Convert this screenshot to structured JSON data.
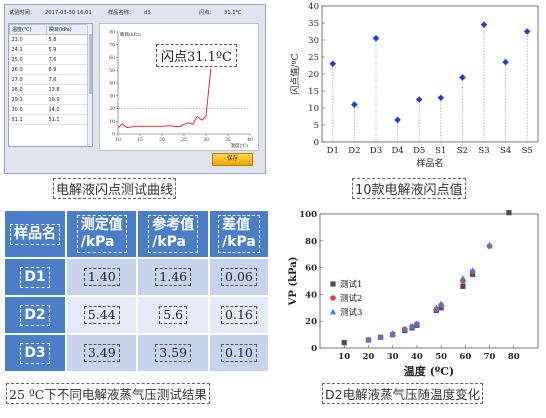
{
  "software": {
    "header": {
      "time_label": "试验时间：",
      "time_value": "2017-03-30 16:01",
      "sample_label": "样品名称：",
      "sample_value": "d3",
      "flash_label": "闪点：",
      "flash_value": "31.1℃"
    },
    "table": {
      "headers": [
        "温度(℃)",
        "瞬目(kPa)"
      ],
      "rows": [
        [
          "23.0",
          "5.8"
        ],
        [
          "24.1",
          "5.9"
        ],
        [
          "25.0",
          "7.6"
        ],
        [
          "26.0",
          "8.9"
        ],
        [
          "27.0",
          "7.6"
        ],
        [
          "28.0",
          "13.8"
        ],
        [
          "29.1",
          "10.9"
        ],
        [
          "30.0",
          "14.0"
        ],
        [
          "31.1",
          "51.1"
        ]
      ]
    },
    "plot": {
      "ylabel": "瞬目(kPa)",
      "xlabel": "温度(℃)",
      "y_ticks": [
        "80",
        "70",
        "60",
        "50",
        "40",
        "30",
        "20",
        "10",
        "0"
      ],
      "x_ticks": [
        "10",
        "15",
        "20",
        "25",
        "30",
        "35",
        "40"
      ],
      "callout": "闪点31.1ºC"
    },
    "save_button": "保存"
  },
  "captions": {
    "top_left": "电解液闪点测试曲线",
    "top_right": "10款电解液闪点值",
    "bottom_left": "25 ºC下不同电解液蒸气压测试结果",
    "bottom_right": "D2电解液蒸气压随温度变化"
  },
  "colors": {
    "accent_blue": "#4a7ec6",
    "row_dark": "#c6d3eb",
    "row_light": "#e5ebf6",
    "scatter_marker": "#1f3fcf",
    "curve_red": "#e11b1b",
    "button_yellow": "#f7c21a"
  },
  "vp_table": {
    "headers": [
      "样品名",
      "测定值\n/kPa",
      "参考值\n/kPa",
      "差值\n/kPa"
    ],
    "rows": [
      [
        "D1",
        "1.40",
        "1.46",
        "0.06"
      ],
      [
        "D2",
        "5.44",
        "5.6",
        "0.16"
      ],
      [
        "D3",
        "3.49",
        "3.59",
        "0.10"
      ]
    ]
  },
  "chart_data": [
    {
      "type": "line",
      "title": "",
      "xlabel": "温度(℃)",
      "ylabel": "瞬目(kPa)",
      "xlim": [
        10,
        40
      ],
      "ylim": [
        0,
        80
      ],
      "series": [
        {
          "x": [
            10,
            11,
            12,
            14,
            16,
            18,
            20,
            22,
            23,
            24.1,
            25,
            26,
            27,
            28,
            29.1,
            30,
            31.1
          ],
          "y": [
            5,
            8,
            5,
            6,
            6,
            6,
            6,
            6.5,
            5.8,
            5.9,
            7.6,
            8.9,
            7.6,
            13.8,
            10.9,
            14,
            51.1
          ]
        }
      ],
      "reference_line_y": 20,
      "grid": false
    },
    {
      "type": "scatter",
      "title": "",
      "xlabel": "样品名",
      "ylabel": "闪点值/ºC",
      "categories": [
        "D1",
        "D2",
        "D3",
        "D4",
        "D5",
        "S1",
        "S2",
        "S3",
        "S4",
        "S5"
      ],
      "values": [
        23,
        11,
        30.5,
        6.5,
        12.5,
        13,
        19,
        34.5,
        23.5,
        32.5
      ],
      "ylim": [
        0,
        40
      ],
      "y_ticks": [
        0,
        5,
        10,
        15,
        20,
        25,
        30,
        35,
        40
      ],
      "grid": false
    },
    {
      "type": "scatter",
      "title": "",
      "xlabel": "温度 (ºC)",
      "ylabel": "VP (kPa)",
      "xlim": [
        0,
        90
      ],
      "ylim": [
        0,
        100
      ],
      "x_ticks": [
        10,
        20,
        30,
        40,
        50,
        60,
        70,
        80
      ],
      "y_ticks": [
        0,
        20,
        40,
        60,
        80,
        100
      ],
      "legend_position": "left",
      "series": [
        {
          "name": "测试1",
          "x": [
            10,
            20,
            25,
            30,
            35,
            38,
            40,
            48,
            50,
            59,
            63,
            78
          ],
          "y": [
            4,
            6,
            8,
            10,
            13,
            15,
            17,
            28,
            30,
            46,
            55,
            101
          ]
        },
        {
          "name": "测试2",
          "x": [
            20,
            25,
            30,
            35,
            38,
            40,
            48,
            50,
            59,
            63,
            70
          ],
          "y": [
            6,
            8,
            10,
            14,
            16,
            18,
            29,
            32,
            50,
            57,
            76
          ]
        },
        {
          "name": "测试3",
          "x": [
            20,
            25,
            30,
            35,
            38,
            40,
            48,
            50,
            59,
            63,
            70
          ],
          "y": [
            6,
            8,
            11,
            14,
            16,
            18,
            30,
            33,
            52,
            58,
            77
          ]
        }
      ],
      "grid": false
    }
  ]
}
